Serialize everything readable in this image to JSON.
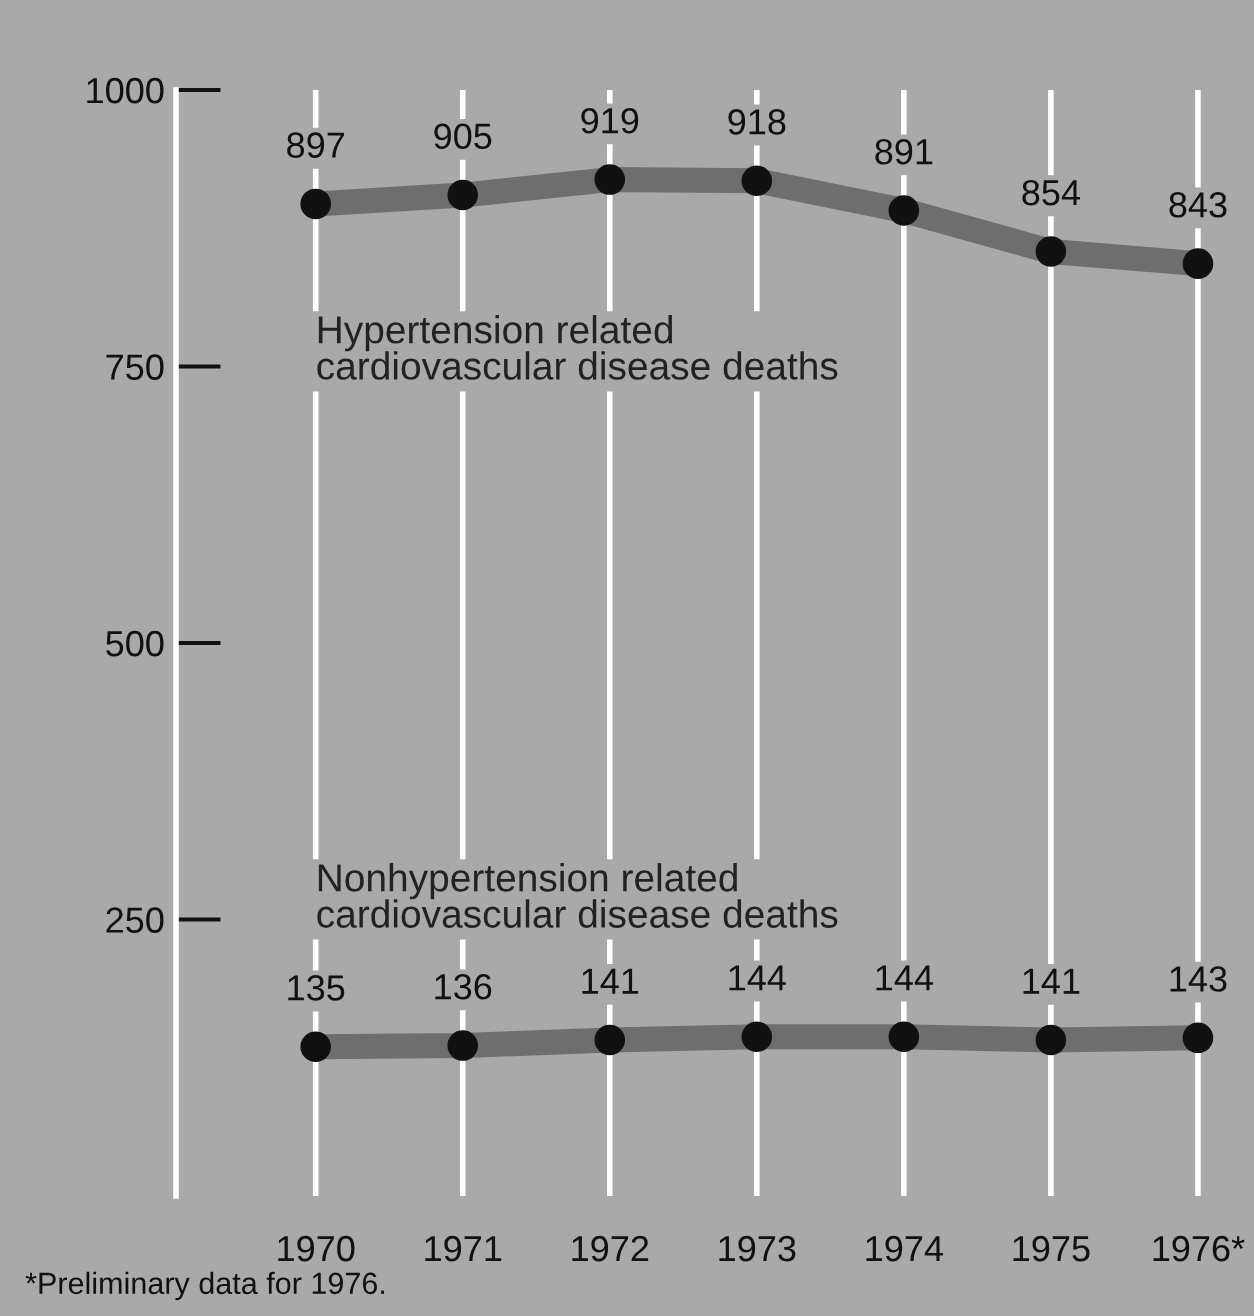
{
  "chart_data": {
    "type": "line",
    "categories": [
      "1970",
      "1971",
      "1972",
      "1973",
      "1974",
      "1975",
      "1976*"
    ],
    "series": [
      {
        "name": "Hypertension related\ncardiovascular disease deaths",
        "color": "#6e6e6e",
        "values": [
          897,
          905,
          919,
          918,
          891,
          854,
          843
        ]
      },
      {
        "name": "Nonhypertension related\ncardiovascular disease deaths",
        "color": "#6e6e6e",
        "values": [
          135,
          136,
          141,
          144,
          144,
          141,
          143
        ]
      }
    ],
    "ylim": [
      0,
      1000
    ],
    "yticks": [
      250,
      500,
      750,
      1000
    ],
    "grid": "x",
    "marker": "circle",
    "line_style": "solid",
    "data_labels": true,
    "legend": false,
    "annotations": [
      "*Preliminary data for 1976."
    ]
  }
}
